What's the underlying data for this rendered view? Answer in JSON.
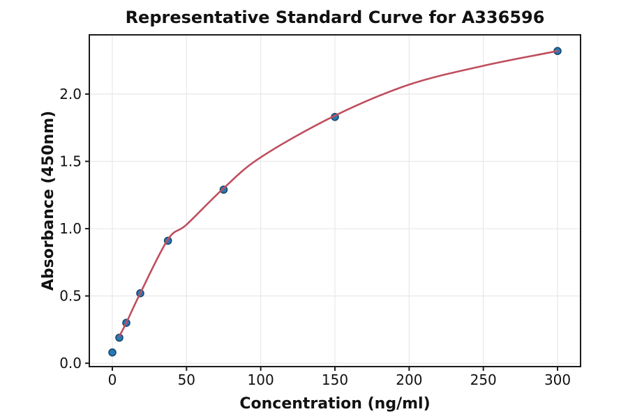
{
  "figure": {
    "background": "#ffffff",
    "plot_background": "#ffffff",
    "spine_color": "#1a1a1a",
    "grid_color": "#e8e8e8",
    "text_color": "#111111"
  },
  "chart_data": {
    "type": "scatter",
    "title": "Representative Standard Curve for A336596",
    "xlabel": "Concentration (ng/ml)",
    "ylabel": "Absorbance (450nm)",
    "xlim": [
      -15.5,
      315.5
    ],
    "ylim": [
      -0.025,
      2.44
    ],
    "xticks": [
      0,
      50,
      100,
      150,
      200,
      250,
      300
    ],
    "xtick_labels": [
      "0",
      "50",
      "100",
      "150",
      "200",
      "250",
      "300"
    ],
    "yticks": [
      0.0,
      0.5,
      1.0,
      1.5,
      2.0
    ],
    "ytick_labels": [
      "0.0",
      "0.5",
      "1.0",
      "1.5",
      "2.0"
    ],
    "grid": true,
    "legend_position": "none",
    "series": [
      {
        "name": "standard-points",
        "type": "scatter",
        "marker": "circle",
        "color": "#2878b5",
        "edge_color": "#17496e",
        "points": [
          [
            0,
            0.08
          ],
          [
            4.7,
            0.19
          ],
          [
            9.4,
            0.3
          ],
          [
            18.8,
            0.52
          ],
          [
            37.5,
            0.91
          ],
          [
            75,
            1.29
          ],
          [
            150,
            1.83
          ],
          [
            300,
            2.32
          ]
        ]
      },
      {
        "name": "fit-curve",
        "type": "line",
        "color": "#bf4e5e",
        "points": [
          [
            4.7,
            0.2
          ],
          [
            9.4,
            0.3
          ],
          [
            18.8,
            0.52
          ],
          [
            37.5,
            0.92
          ],
          [
            50,
            1.03
          ],
          [
            75,
            1.3
          ],
          [
            100,
            1.53
          ],
          [
            150,
            1.84
          ],
          [
            200,
            2.07
          ],
          [
            250,
            2.21
          ],
          [
            300,
            2.32
          ]
        ]
      }
    ]
  }
}
